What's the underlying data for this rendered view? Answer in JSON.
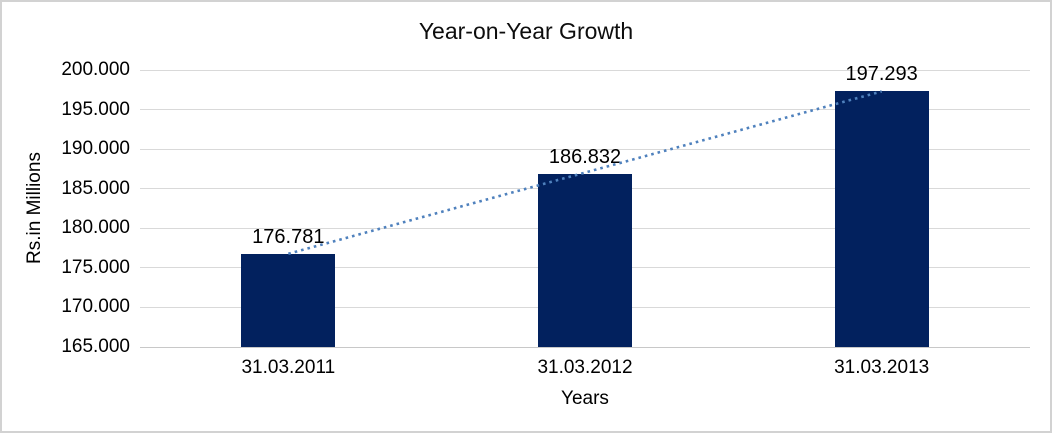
{
  "chart_data": {
    "type": "bar",
    "title": "Year-on-Year Growth",
    "xlabel": "Years",
    "ylabel": "Rs.in Millions",
    "categories": [
      "31.03.2011",
      "31.03.2012",
      "31.03.2013"
    ],
    "values": [
      176.781,
      186.832,
      197.293
    ],
    "data_labels": [
      "176.781",
      "186.832",
      "197.293"
    ],
    "ylim": [
      165,
      200
    ],
    "y_tick_step": 5,
    "y_tick_labels": [
      "200.000",
      "195.000",
      "190.000",
      "185.000",
      "180.000",
      "175.000",
      "170.000",
      "165.000"
    ],
    "grid": true,
    "legend": "none",
    "bar_color": "#02215e",
    "gridline_color": "#d9d9d9",
    "axis_line_color": "#c8c8c8",
    "text_color": "#000000",
    "trendline": {
      "type": "linear",
      "style": "dotted",
      "color": "#4f81bd",
      "from_value": 176.781,
      "to_value": 197.293
    }
  }
}
